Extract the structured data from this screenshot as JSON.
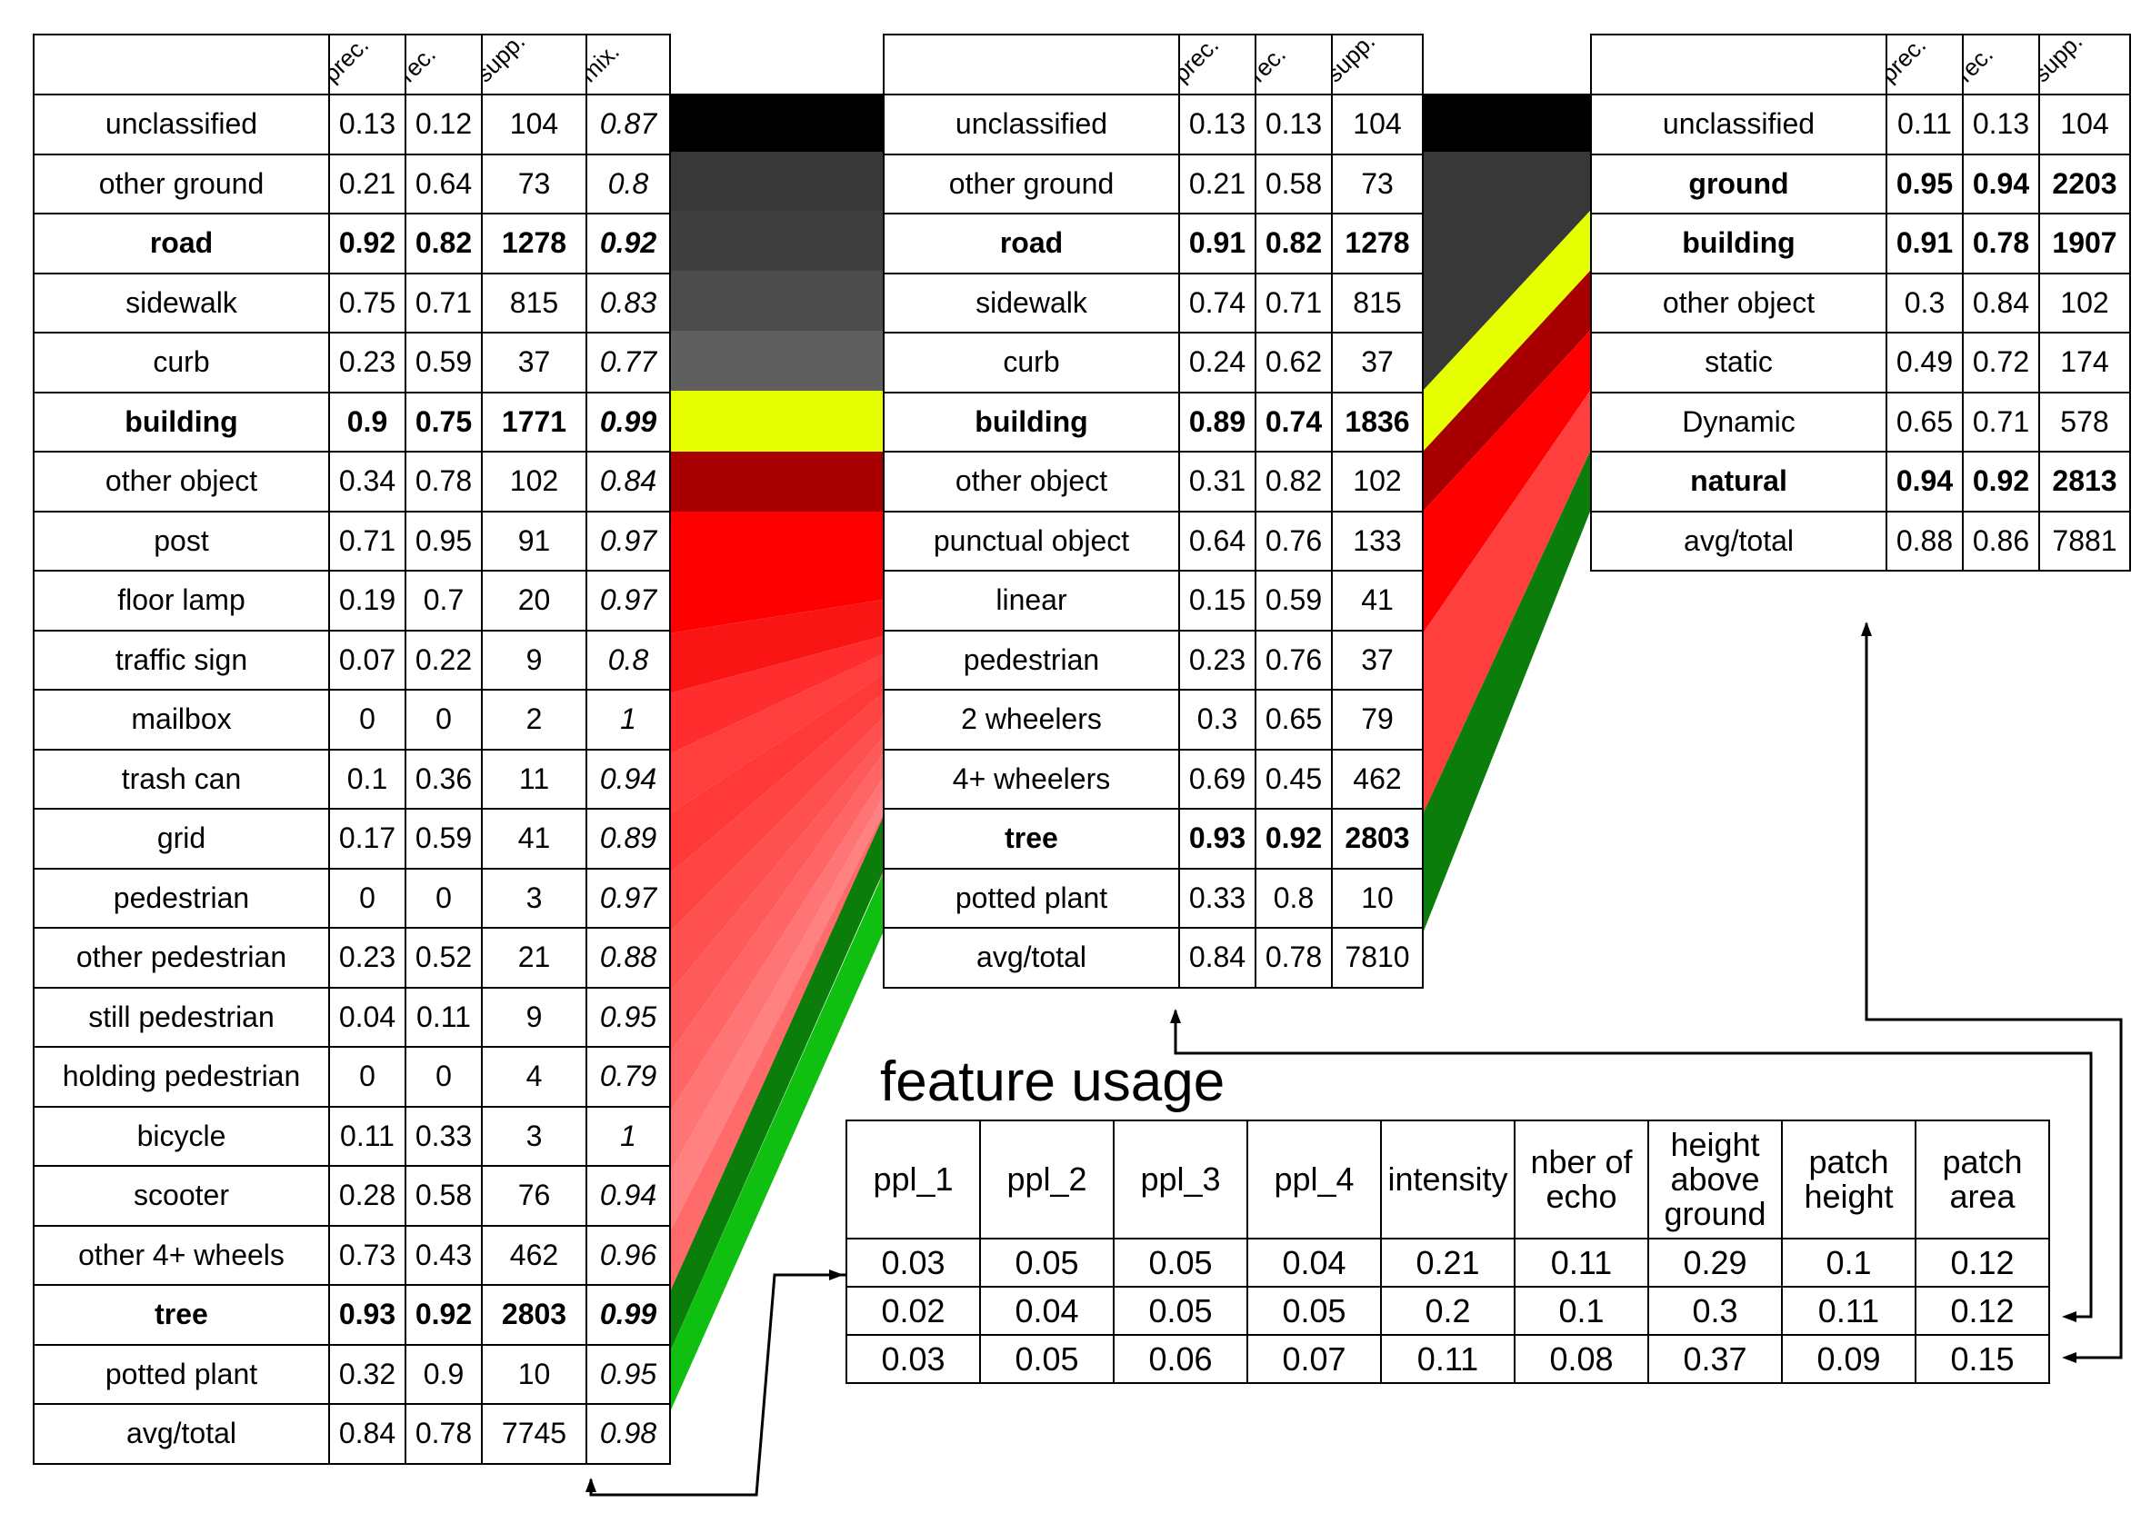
{
  "colors": {
    "unclassified": "#000000",
    "other_ground": "#383838",
    "road": "#3f3f3f",
    "sidewalk": "#4c4c4c",
    "curb": "#5f5f5f",
    "building": "#e6ff00",
    "other_object": "#a80000",
    "post": "#ff0000",
    "floor_lamp": "#ff0000",
    "traffic_sign": "#fa1515",
    "mailbox": "#ff2d2d",
    "trash_can": "#ff3e3e",
    "grid": "#ff3838",
    "pedestrian": "#ff4444",
    "other_pedestrian": "#ff5050",
    "still_pedestrian": "#ff5a5a",
    "holding_pedestrian": "#ff6565",
    "bicycle": "#ff7575",
    "scooter": "#ff8181",
    "other_4_wheels": "#ff6b6b",
    "tree": "#0a7d0a",
    "potted_plant": "#10c010",
    "natural": "#0a7d0a"
  },
  "tables": [
    {
      "headers": [
        "prec.",
        "rec.",
        "supp.",
        "mix."
      ],
      "rows": [
        {
          "name": "unclassified",
          "prec": "0.13",
          "rec": "0.12",
          "supp": "104",
          "mix": "0.87",
          "bold": false
        },
        {
          "name": "other ground",
          "prec": "0.21",
          "rec": "0.64",
          "supp": "73",
          "mix": "0.8",
          "bold": false
        },
        {
          "name": "road",
          "prec": "0.92",
          "rec": "0.82",
          "supp": "1278",
          "mix": "0.92",
          "bold": true
        },
        {
          "name": "sidewalk",
          "prec": "0.75",
          "rec": "0.71",
          "supp": "815",
          "mix": "0.83",
          "bold": false
        },
        {
          "name": "curb",
          "prec": "0.23",
          "rec": "0.59",
          "supp": "37",
          "mix": "0.77",
          "bold": false
        },
        {
          "name": "building",
          "prec": "0.9",
          "rec": "0.75",
          "supp": "1771",
          "mix": "0.99",
          "bold": true
        },
        {
          "name": "other object",
          "prec": "0.34",
          "rec": "0.78",
          "supp": "102",
          "mix": "0.84",
          "bold": false
        },
        {
          "name": "post",
          "prec": "0.71",
          "rec": "0.95",
          "supp": "91",
          "mix": "0.97",
          "bold": false
        },
        {
          "name": "floor lamp",
          "prec": "0.19",
          "rec": "0.7",
          "supp": "20",
          "mix": "0.97",
          "bold": false
        },
        {
          "name": "traffic sign",
          "prec": "0.07",
          "rec": "0.22",
          "supp": "9",
          "mix": "0.8",
          "bold": false
        },
        {
          "name": "mailbox",
          "prec": "0",
          "rec": "0",
          "supp": "2",
          "mix": "1",
          "bold": false
        },
        {
          "name": "trash can",
          "prec": "0.1",
          "rec": "0.36",
          "supp": "11",
          "mix": "0.94",
          "bold": false
        },
        {
          "name": "grid",
          "prec": "0.17",
          "rec": "0.59",
          "supp": "41",
          "mix": "0.89",
          "bold": false
        },
        {
          "name": "pedestrian",
          "prec": "0",
          "rec": "0",
          "supp": "3",
          "mix": "0.97",
          "bold": false
        },
        {
          "name": "other pedestrian",
          "prec": "0.23",
          "rec": "0.52",
          "supp": "21",
          "mix": "0.88",
          "bold": false
        },
        {
          "name": "still pedestrian",
          "prec": "0.04",
          "rec": "0.11",
          "supp": "9",
          "mix": "0.95",
          "bold": false
        },
        {
          "name": "holding pedestrian",
          "prec": "0",
          "rec": "0",
          "supp": "4",
          "mix": "0.79",
          "bold": false
        },
        {
          "name": "bicycle",
          "prec": "0.11",
          "rec": "0.33",
          "supp": "3",
          "mix": "1",
          "bold": false
        },
        {
          "name": "scooter",
          "prec": "0.28",
          "rec": "0.58",
          "supp": "76",
          "mix": "0.94",
          "bold": false
        },
        {
          "name": "other 4+ wheels",
          "prec": "0.73",
          "rec": "0.43",
          "supp": "462",
          "mix": "0.96",
          "bold": false
        },
        {
          "name": "tree",
          "prec": "0.93",
          "rec": "0.92",
          "supp": "2803",
          "mix": "0.99",
          "bold": true
        },
        {
          "name": "potted plant",
          "prec": "0.32",
          "rec": "0.9",
          "supp": "10",
          "mix": "0.95",
          "bold": false
        },
        {
          "name": "avg/total",
          "prec": "0.84",
          "rec": "0.78",
          "supp": "7745",
          "mix": "0.98",
          "bold": false
        }
      ]
    },
    {
      "headers": [
        "prec.",
        "rec.",
        "supp."
      ],
      "rows": [
        {
          "name": "unclassified",
          "prec": "0.13",
          "rec": "0.13",
          "supp": "104",
          "bold": false
        },
        {
          "name": "other ground",
          "prec": "0.21",
          "rec": "0.58",
          "supp": "73",
          "bold": false
        },
        {
          "name": "road",
          "prec": "0.91",
          "rec": "0.82",
          "supp": "1278",
          "bold": true
        },
        {
          "name": "sidewalk",
          "prec": "0.74",
          "rec": "0.71",
          "supp": "815",
          "bold": false
        },
        {
          "name": "curb",
          "prec": "0.24",
          "rec": "0.62",
          "supp": "37",
          "bold": false
        },
        {
          "name": "building",
          "prec": "0.89",
          "rec": "0.74",
          "supp": "1836",
          "bold": true
        },
        {
          "name": "other object",
          "prec": "0.31",
          "rec": "0.82",
          "supp": "102",
          "bold": false
        },
        {
          "name": "punctual object",
          "prec": "0.64",
          "rec": "0.76",
          "supp": "133",
          "bold": false
        },
        {
          "name": "linear",
          "prec": "0.15",
          "rec": "0.59",
          "supp": "41",
          "bold": false
        },
        {
          "name": "pedestrian",
          "prec": "0.23",
          "rec": "0.76",
          "supp": "37",
          "bold": false
        },
        {
          "name": "2 wheelers",
          "prec": "0.3",
          "rec": "0.65",
          "supp": "79",
          "bold": false
        },
        {
          "name": "4+ wheelers",
          "prec": "0.69",
          "rec": "0.45",
          "supp": "462",
          "bold": false
        },
        {
          "name": "tree",
          "prec": "0.93",
          "rec": "0.92",
          "supp": "2803",
          "bold": true
        },
        {
          "name": "potted plant",
          "prec": "0.33",
          "rec": "0.8",
          "supp": "10",
          "bold": false
        },
        {
          "name": "avg/total",
          "prec": "0.84",
          "rec": "0.78",
          "supp": "7810",
          "bold": false
        }
      ]
    },
    {
      "headers": [
        "prec.",
        "rec.",
        "supp."
      ],
      "rows": [
        {
          "name": "unclassified",
          "prec": "0.11",
          "rec": "0.13",
          "supp": "104",
          "bold": false
        },
        {
          "name": "ground",
          "prec": "0.95",
          "rec": "0.94",
          "supp": "2203",
          "bold": true
        },
        {
          "name": "building",
          "prec": "0.91",
          "rec": "0.78",
          "supp": "1907",
          "bold": true
        },
        {
          "name": "other object",
          "prec": "0.3",
          "rec": "0.84",
          "supp": "102",
          "bold": false
        },
        {
          "name": "static",
          "prec": "0.49",
          "rec": "0.72",
          "supp": "174",
          "bold": false
        },
        {
          "name": "Dynamic",
          "prec": "0.65",
          "rec": "0.71",
          "supp": "578",
          "bold": false
        },
        {
          "name": "natural",
          "prec": "0.94",
          "rec": "0.92",
          "supp": "2813",
          "bold": true
        },
        {
          "name": "avg/total",
          "prec": "0.88",
          "rec": "0.86",
          "supp": "7881",
          "bold": false
        }
      ]
    }
  ],
  "feature_usage": {
    "title": "feature usage",
    "headers": [
      [
        "ppl_1"
      ],
      [
        "ppl_2"
      ],
      [
        "ppl_3"
      ],
      [
        "ppl_4"
      ],
      [
        "intensity"
      ],
      [
        "nber of",
        "echo"
      ],
      [
        "height",
        "above",
        "ground"
      ],
      [
        "patch",
        "height"
      ],
      [
        "patch",
        "area"
      ]
    ],
    "rows": [
      [
        "0.03",
        "0.05",
        "0.05",
        "0.04",
        "0.21",
        "0.11",
        "0.29",
        "0.1",
        "0.12"
      ],
      [
        "0.02",
        "0.04",
        "0.05",
        "0.05",
        "0.2",
        "0.1",
        "0.3",
        "0.11",
        "0.12"
      ],
      [
        "0.03",
        "0.05",
        "0.06",
        "0.07",
        "0.11",
        "0.08",
        "0.37",
        "0.09",
        "0.15"
      ]
    ]
  }
}
